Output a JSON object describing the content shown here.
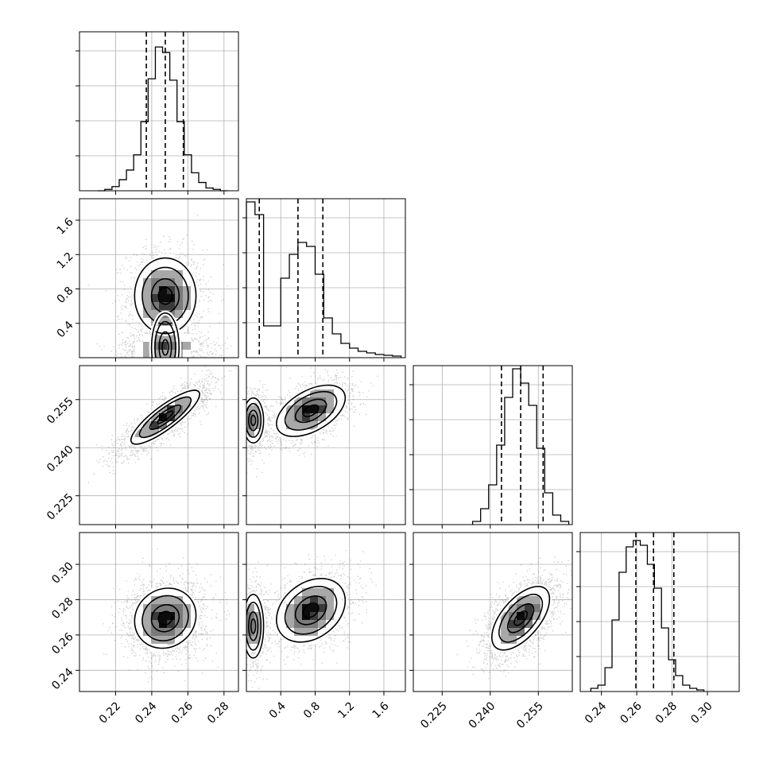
{
  "chart_data": {
    "type": "corner",
    "title": "",
    "grid": true,
    "n_params": 4,
    "diag": [
      {
        "param": 0,
        "range": [
          0.2,
          0.288
        ],
        "edges_start": 0.21,
        "edges_step": 0.004,
        "counts": [
          0,
          2,
          6,
          16,
          30,
          52,
          100,
          162,
          208,
          200,
          160,
          100,
          52,
          26,
          12,
          4,
          2,
          0
        ],
        "ymax": 230,
        "quantiles": [
          0.237,
          0.2475,
          0.2575
        ]
      },
      {
        "param": 1,
        "range": [
          0.0,
          1.85
        ],
        "edges_start": 0.0,
        "edges_step": 0.1,
        "counts": [
          196,
          180,
          40,
          40,
          100,
          130,
          145,
          140,
          105,
          50,
          30,
          18,
          12,
          8,
          6,
          4,
          3,
          2
        ],
        "ymax": 200,
        "quantiles": [
          0.15,
          0.6,
          0.89
        ]
      },
      {
        "param": 2,
        "range": [
          0.216,
          0.2656
        ],
        "edges_start": 0.2345,
        "edges_step": 0.0025,
        "counts": [
          4,
          20,
          50,
          100,
          160,
          196,
          178,
          150,
          96,
          40,
          12,
          4
        ],
        "ymax": 200,
        "quantiles": [
          0.2435,
          0.2495,
          0.2565
        ]
      },
      {
        "param": 3,
        "range": [
          0.228,
          0.318
        ],
        "edges_start": 0.234,
        "edges_step": 0.004,
        "counts": [
          4,
          8,
          30,
          90,
          150,
          182,
          190,
          184,
          160,
          130,
          80,
          40,
          20,
          8,
          4,
          2
        ],
        "ymax": 200,
        "quantiles": [
          0.2595,
          0.2695,
          0.281
        ]
      }
    ],
    "pairs": [
      {
        "row": 1,
        "col": 0,
        "blobs": [
          {
            "x": 0.2475,
            "y": 0.72,
            "sx": 0.0085,
            "sy": 0.22,
            "rho": 0.0,
            "w": 0.55
          },
          {
            "x": 0.2475,
            "y": 0.12,
            "sx": 0.0095,
            "sy": 0.08,
            "rho": 0.0,
            "w": 0.45
          }
        ]
      },
      {
        "row": 2,
        "col": 0,
        "blobs": [
          {
            "x": 0.2475,
            "y": 0.2495,
            "sx": 0.0095,
            "sy": 0.0042,
            "rho": 0.85,
            "w": 1.0
          }
        ]
      },
      {
        "row": 3,
        "col": 0,
        "blobs": [
          {
            "x": 0.2475,
            "y": 0.2695,
            "sx": 0.0085,
            "sy": 0.0085,
            "rho": 0.1,
            "w": 1.0
          }
        ]
      },
      {
        "row": 2,
        "col": 1,
        "blobs": [
          {
            "x": 0.75,
            "y": 0.2515,
            "sx": 0.2,
            "sy": 0.004,
            "rho": 0.5,
            "w": 0.55
          },
          {
            "x": 0.08,
            "y": 0.2485,
            "sx": 0.06,
            "sy": 0.0035,
            "rho": 0.0,
            "w": 0.45
          }
        ]
      },
      {
        "row": 3,
        "col": 1,
        "blobs": [
          {
            "x": 0.75,
            "y": 0.274,
            "sx": 0.2,
            "sy": 0.009,
            "rho": 0.3,
            "w": 0.55
          },
          {
            "x": 0.08,
            "y": 0.265,
            "sx": 0.06,
            "sy": 0.009,
            "rho": 0.0,
            "w": 0.45
          }
        ]
      },
      {
        "row": 3,
        "col": 2,
        "blobs": [
          {
            "x": 0.2495,
            "y": 0.2695,
            "sx": 0.0045,
            "sy": 0.009,
            "rho": 0.6,
            "w": 1.0
          }
        ]
      }
    ],
    "ranges": [
      [
        0.2,
        0.288
      ],
      [
        0.0,
        1.85
      ],
      [
        0.216,
        0.2656
      ],
      [
        0.228,
        0.318
      ]
    ],
    "ticks_x": [
      {
        "values": [
          0.22,
          0.24,
          0.26,
          0.28
        ],
        "labels": [
          "0.22",
          "0.24",
          "0.26",
          "0.28"
        ]
      },
      {
        "values": [
          0.4,
          0.8,
          1.2,
          1.6
        ],
        "labels": [
          "0.4",
          "0.8",
          "1.2",
          "1.6"
        ]
      },
      {
        "values": [
          0.225,
          0.24,
          0.255
        ],
        "labels": [
          "0.225",
          "0.240",
          "0.255"
        ]
      },
      {
        "values": [
          0.24,
          0.26,
          0.28,
          0.3
        ],
        "labels": [
          "0.24",
          "0.26",
          "0.28",
          "0.30"
        ]
      }
    ],
    "ticks_y": [
      {
        "values": [],
        "labels": []
      },
      {
        "values": [
          0.4,
          0.8,
          1.2,
          1.6
        ],
        "labels": [
          "0.4",
          "0.8",
          "1.2",
          "1.6"
        ]
      },
      {
        "values": [
          0.225,
          0.24,
          0.255
        ],
        "labels": [
          "0.225",
          "0.240",
          "0.255"
        ]
      },
      {
        "values": [
          0.24,
          0.26,
          0.28,
          0.3
        ],
        "labels": [
          "0.24",
          "0.26",
          "0.28",
          "0.30"
        ]
      }
    ],
    "colors": {
      "line": "#000000",
      "fill_dark": "#111111",
      "fill_light": "#d0d0d0",
      "grid": "#b0b0b0",
      "points": "#000000"
    }
  }
}
